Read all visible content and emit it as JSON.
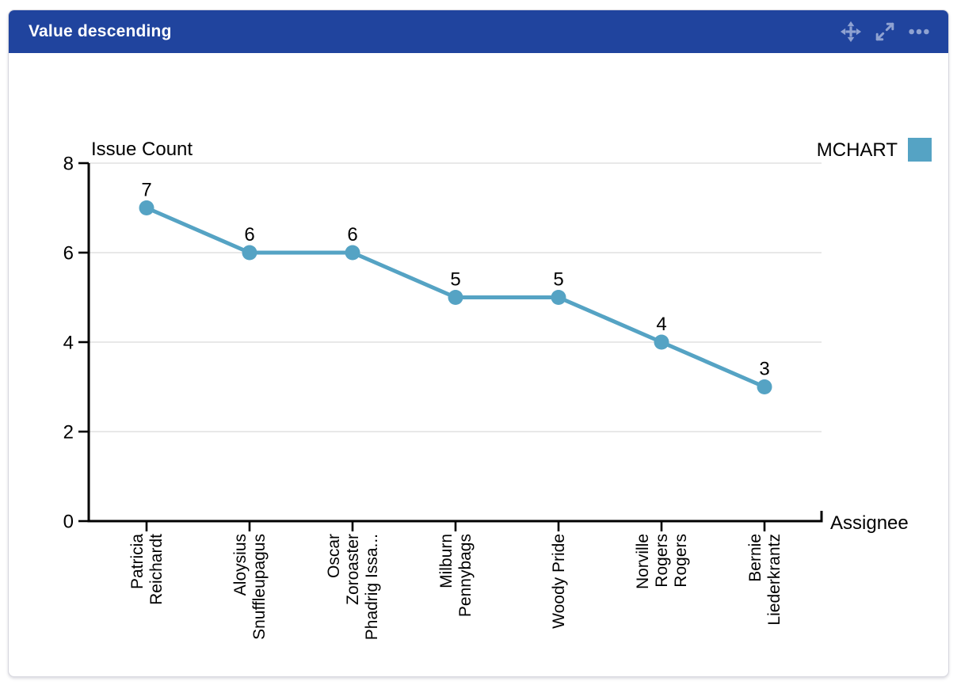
{
  "widget": {
    "title": "Value descending",
    "toolbar_icons": [
      "move",
      "expand",
      "more-options"
    ]
  },
  "chart_data": {
    "type": "line",
    "title": "",
    "xlabel": "Assignee",
    "ylabel": "Issue Count",
    "categories": [
      "Patricia Reichardt",
      "Aloysius Snuffleupagus",
      "Oscar Zoroaster Phadrig Issa...",
      "Milburn Pennybags",
      "Woody Pride",
      "Norville Rogers Rogers",
      "Bernie Liederkrantz"
    ],
    "category_display_lines": [
      [
        "Patricia",
        "Reichardt"
      ],
      [
        "Aloysius",
        "Snuffleupagus"
      ],
      [
        "Oscar",
        "Zoroaster",
        "Phadrig Issa..."
      ],
      [
        "Milburn",
        "Pennybags"
      ],
      [
        "Woody Pride"
      ],
      [
        "Norville",
        "Rogers",
        "Rogers"
      ],
      [
        "Bernie",
        "Liederkrantz"
      ]
    ],
    "series": [
      {
        "name": "MCHART",
        "color": "#55A3C4",
        "values": [
          7,
          6,
          6,
          5,
          5,
          4,
          3
        ]
      }
    ],
    "show_data_labels": true,
    "ylim": [
      0,
      8
    ],
    "yticks": [
      0,
      2,
      4,
      6,
      8
    ],
    "grid": true,
    "legend_position": "top-right"
  },
  "colors": {
    "header_bg": "#20449E",
    "header_text": "#FFFFFF",
    "header_icon": "#8FA2D1",
    "series": "#55A3C4",
    "grid_line": "#E8E8E8",
    "axis": "#000000",
    "text": "#000000",
    "card_border": "#D6D6DE",
    "card_bg": "#FFFFFF"
  }
}
